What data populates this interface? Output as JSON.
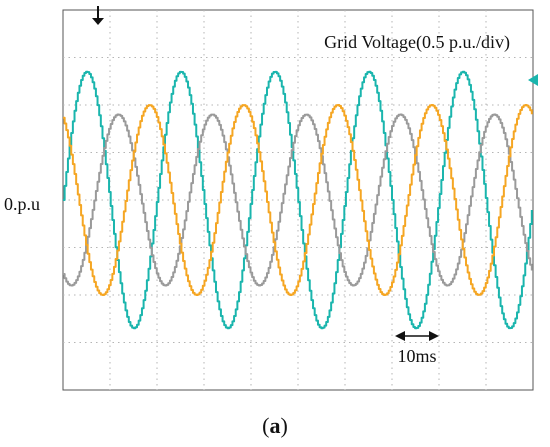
{
  "chart_data": {
    "type": "line",
    "title": "Grid  Voltage(0.5 p.u./div)",
    "ylabel": "0.p.u",
    "time_scale_label": "10ms",
    "caption_letter": "a",
    "grid": true,
    "x_unit": "ms",
    "y_unit": "p.u.",
    "xlim": [
      0,
      100
    ],
    "ylim": [
      -2,
      2
    ],
    "x_divisions": 10,
    "y_divisions": 8,
    "series": [
      {
        "color": "#1ab5ad",
        "amplitude": 1.35,
        "period": 20,
        "phase_deg": 0,
        "start_ms": 0
      },
      {
        "color": "#9a9a9a",
        "amplitude": 0.9,
        "period": 20,
        "phase_deg": 120,
        "start_ms": 0
      },
      {
        "color": "#f5a623",
        "amplitude": 1.0,
        "period": 20,
        "phase_deg": 240,
        "start_ms": 0
      }
    ]
  }
}
